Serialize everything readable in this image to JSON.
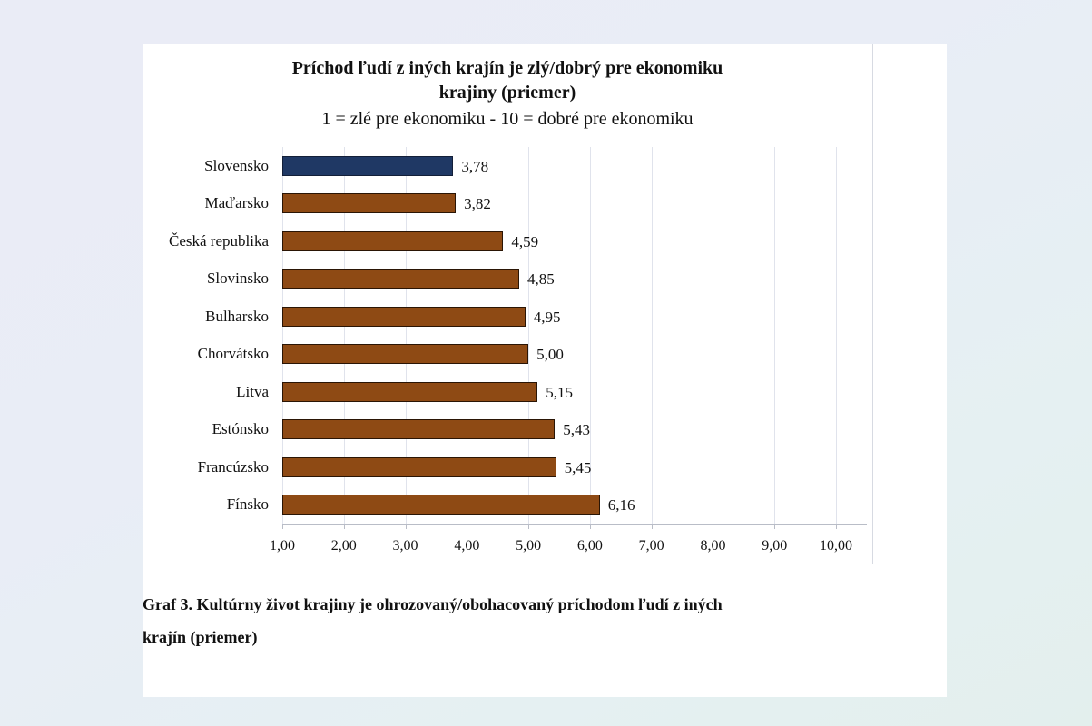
{
  "page": {
    "background_top_left": "#eaecf6",
    "background_bottom_right": "#e3efed",
    "panel_color": "#ffffff"
  },
  "chart_data": {
    "type": "bar",
    "orientation": "horizontal",
    "title": "Príchod ľudí z iných krajín je zlý/dobrý pre ekonomiku krajiny (priemer)",
    "title_lines": [
      "Príchod ľudí z iných krajín je zlý/dobrý pre ekonomiku",
      "krajiny (priemer)"
    ],
    "subtitle": "1 = zlé pre ekonomiku - 10 = dobré pre ekonomiku",
    "categories": [
      "Slovensko",
      "Maďarsko",
      "Česká republika",
      "Slovinsko",
      "Bulharsko",
      "Chorvátsko",
      "Litva",
      "Estónsko",
      "Francúzsko",
      "Fínsko"
    ],
    "values": [
      3.78,
      3.82,
      4.59,
      4.85,
      4.95,
      5.0,
      5.15,
      5.43,
      5.45,
      6.16
    ],
    "value_labels": [
      "3,78",
      "3,82",
      "4,59",
      "4,85",
      "4,95",
      "5,00",
      "5,15",
      "5,43",
      "5,45",
      "6,16"
    ],
    "xlim": [
      1,
      10
    ],
    "x_ticks": [
      1,
      2,
      3,
      4,
      5,
      6,
      7,
      8,
      9,
      10
    ],
    "x_tick_labels": [
      "1,00",
      "2,00",
      "3,00",
      "4,00",
      "5,00",
      "6,00",
      "7,00",
      "8,00",
      "9,00",
      "10,00"
    ],
    "grid": true,
    "legend": false,
    "highlight_index": 0,
    "bar_colors": {
      "highlight_fill": "#1F3864",
      "highlight_border": "#131f38",
      "default_fill": "#8E4A14",
      "default_border": "#2a1505"
    }
  },
  "caption": {
    "lines": [
      "Graf 3. Kultúrny život krajiny je ohrozovaný/obohacovaný príchodom ľudí z iných",
      "krajín (priemer)"
    ],
    "full_text": "Graf 3. Kultúrny život krajiny je ohrozovaný/obohacovaný príchodom ľudí z iných krajín (priemer)"
  }
}
